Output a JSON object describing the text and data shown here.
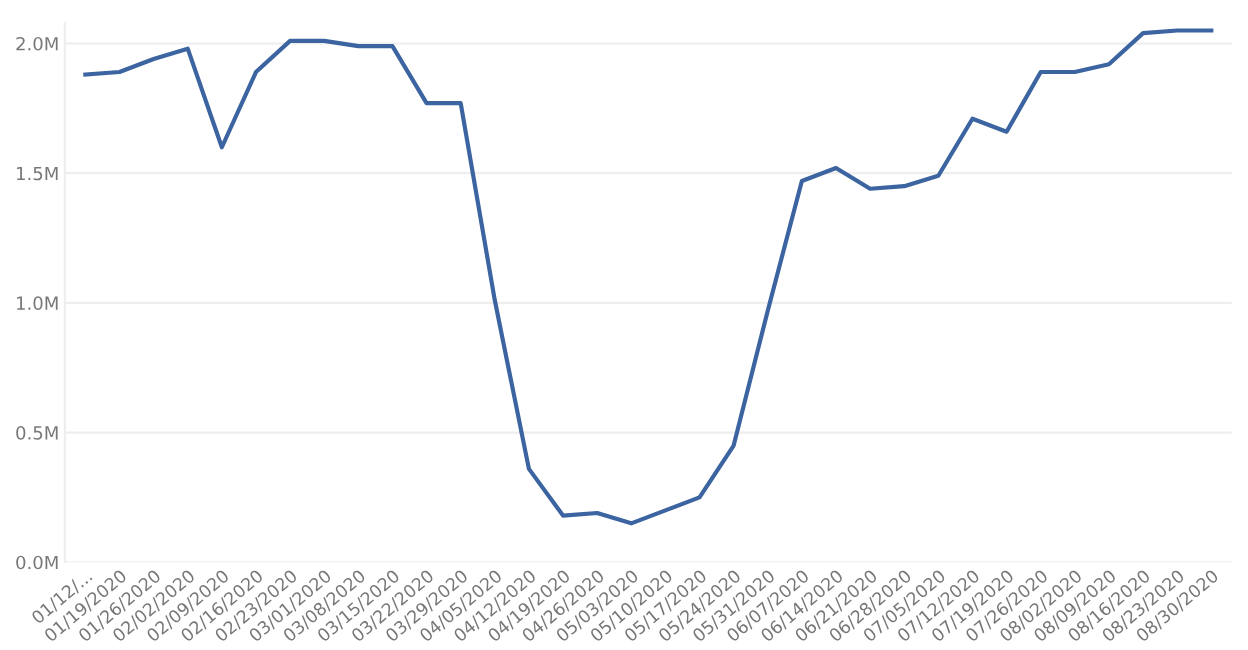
{
  "chart_data": {
    "type": "line",
    "categories": [
      "01/12/...",
      "01/19/2020",
      "01/26/2020",
      "02/02/2020",
      "02/09/2020",
      "02/16/2020",
      "02/23/2020",
      "03/01/2020",
      "03/08/2020",
      "03/15/2020",
      "03/22/2020",
      "03/29/2020",
      "04/05/2020",
      "04/12/2020",
      "04/19/2020",
      "04/26/2020",
      "05/03/2020",
      "05/10/2020",
      "05/17/2020",
      "05/24/2020",
      "05/31/2020",
      "06/07/2020",
      "06/14/2020",
      "06/21/2020",
      "06/28/2020",
      "07/05/2020",
      "07/12/2020",
      "07/19/2020",
      "07/26/2020",
      "08/02/2020",
      "08/09/2020",
      "08/16/2020",
      "08/23/2020",
      "08/30/2020"
    ],
    "series": [
      {
        "color": "#3b64a0",
        "values": [
          1880000,
          1890000,
          1940000,
          1980000,
          1600000,
          1890000,
          2010000,
          2010000,
          1990000,
          1990000,
          1770000,
          1770000,
          1010000,
          360000,
          180000,
          190000,
          150000,
          200000,
          250000,
          450000,
          970000,
          1470000,
          1520000,
          1440000,
          1450000,
          1490000,
          1710000,
          1660000,
          1890000,
          1890000,
          1920000,
          2040000,
          2050000,
          2050000
        ]
      }
    ],
    "ylim": [
      0,
      2080000
    ],
    "yticks": [
      {
        "value": 0,
        "label": "0.0M"
      },
      {
        "value": 500000,
        "label": "0.5M"
      },
      {
        "value": 1000000,
        "label": "1.0M"
      },
      {
        "value": 1500000,
        "label": "1.5M"
      },
      {
        "value": 2000000,
        "label": "2.0M"
      }
    ],
    "grid": "y",
    "marker": "none",
    "line_style": "solid"
  }
}
